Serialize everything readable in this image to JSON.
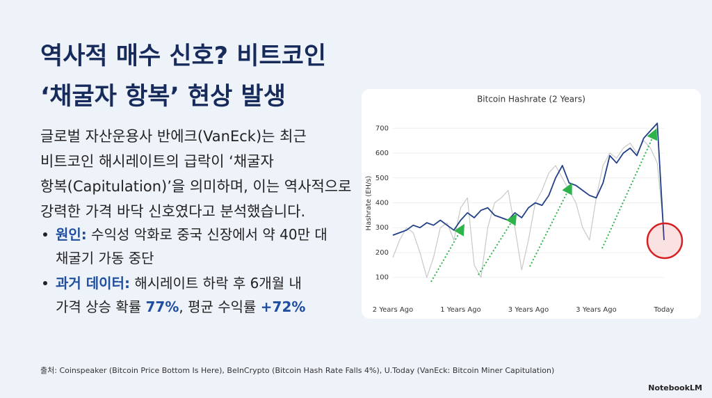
{
  "title": [
    "역사적 매수 신호? 비트코인",
    "‘채굴자 항복’ 현상 발생"
  ],
  "body": [
    "글로벌 자산운용사 반에크(VanEck)는 최근",
    "비트코인 해시레이트의 급락이 ‘채굴자",
    "항복(Capitulation)’을 의미하며, 이는 역사적으로",
    "강력한 가격 바닥 신호였다고 분석했습니다."
  ],
  "bullets": [
    {
      "label": "원인:",
      "lines": [
        "수익성 악화로 중국 신장에서 약 40만 대",
        "채굴기 가동 중단"
      ]
    },
    {
      "label": "과거 데이터:",
      "parts": [
        "해시레이트 하락 후 6개월 내",
        "가격 상승 확률",
        "77%",
        ", 평균 수익률",
        "+72%"
      ]
    }
  ],
  "source": "출처: Coinspeaker (Bitcoin Price Bottom Is Here), BeInCrypto (Bitcoin Hash Rate Falls 4%), U.Today (VanEck: Bitcoin Miner Capitulation)",
  "brand": "NotebookLM",
  "chart_data": {
    "type": "line",
    "title": "Bitcoin Hashrate (2 Years)",
    "y_label": "Hashrate (EH/s)",
    "x_tick_labels": [
      "2 Years Ago",
      "1 Years Ago",
      "3 Years Ago",
      "3 Years Ago",
      "Today"
    ],
    "ylim": [
      60,
      740
    ],
    "yticks": [
      100,
      200,
      300,
      400,
      500,
      600,
      700
    ],
    "series": [
      {
        "color": "#1f3f86",
        "values": [
          270,
          280,
          290,
          310,
          300,
          320,
          310,
          330,
          310,
          290,
          330,
          360,
          340,
          370,
          380,
          350,
          340,
          330,
          360,
          340,
          380,
          400,
          390,
          430,
          500,
          550,
          480,
          470,
          450,
          430,
          420,
          480,
          590,
          560,
          600,
          620,
          590,
          660,
          690,
          720,
          250
        ]
      },
      {
        "color": "#c8c8c8",
        "values": [
          180,
          250,
          300,
          280,
          200,
          100,
          180,
          300,
          320,
          250,
          380,
          420,
          150,
          100,
          300,
          400,
          420,
          450,
          300,
          130,
          250,
          400,
          450,
          520,
          550,
          500,
          450,
          400,
          300,
          250,
          420,
          550,
          600,
          580,
          620,
          640,
          600,
          650,
          620,
          560,
          280
        ]
      }
    ]
  }
}
